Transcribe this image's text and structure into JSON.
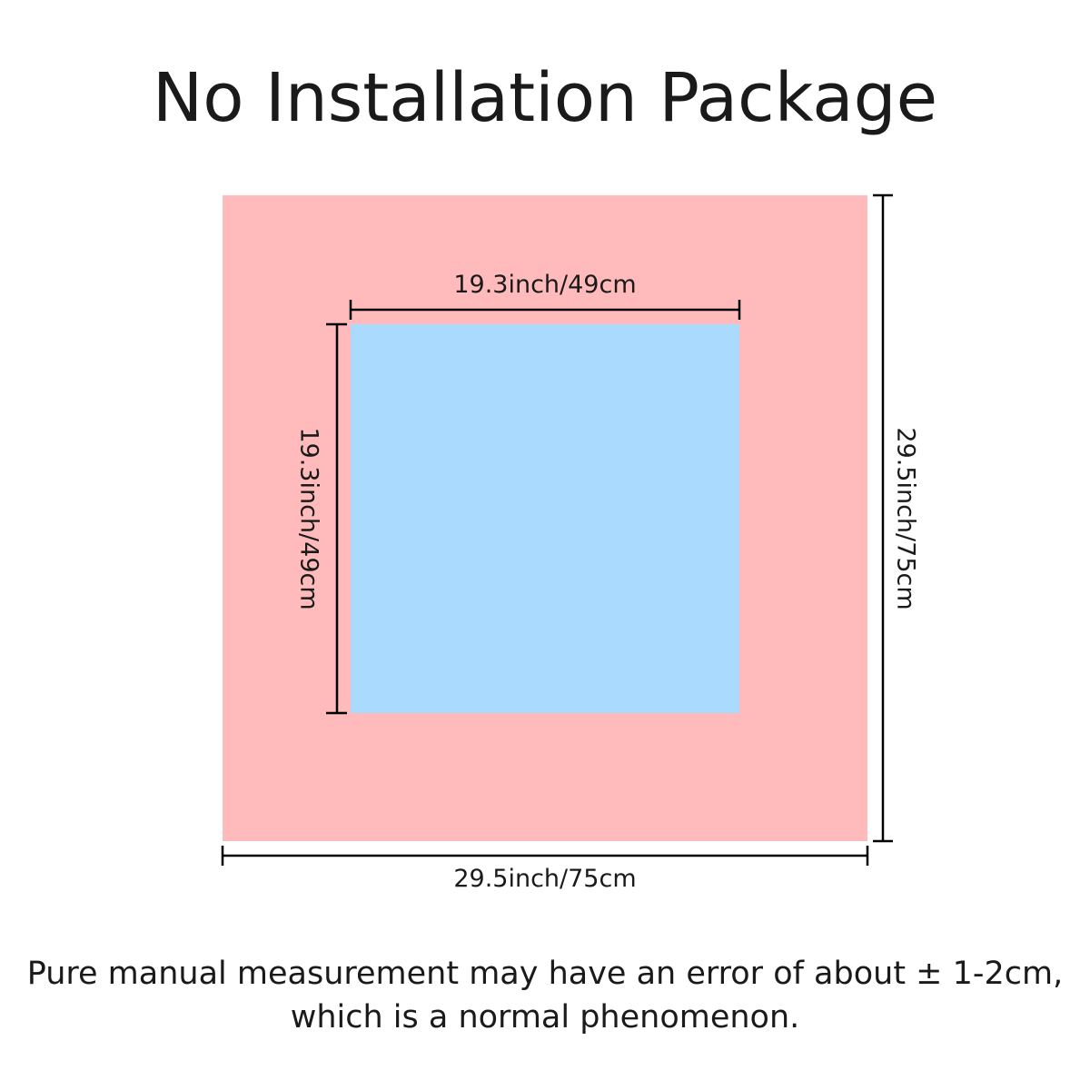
{
  "title": "No Installation Package",
  "colors": {
    "outer": "#FFBBBC",
    "inner": "#AADAFD",
    "lines": "#000000"
  },
  "dimensions": {
    "inner_width": "19.3inch/49cm",
    "inner_height": "19.3inch/49cm",
    "outer_width": "29.5inch/75cm",
    "outer_height": "29.5inch/75cm"
  },
  "note": {
    "line1": "Pure manual measurement may have an error of about ± 1-2cm,",
    "line2": "which is a normal phenomenon."
  }
}
